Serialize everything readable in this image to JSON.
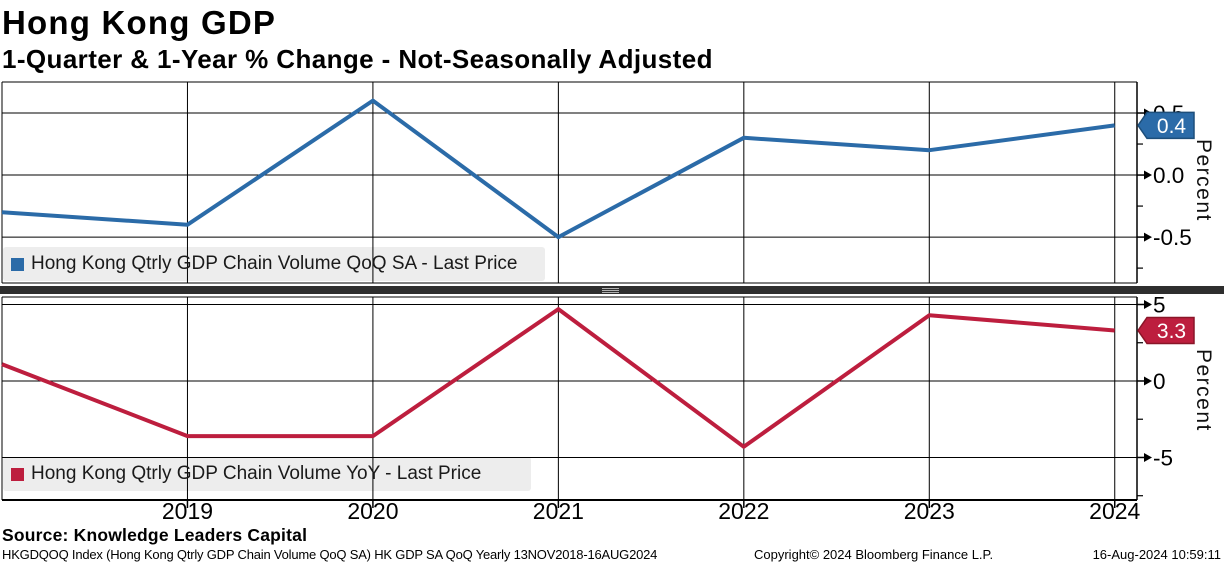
{
  "header": {
    "title": "Hong Kong GDP",
    "subtitle": "1-Quarter & 1-Year % Change - Not-Seasonally Adjusted"
  },
  "footer": {
    "source": "Source: Knowledge Leaders Capital",
    "tracker": "HKGDQOQ Index (Hong Kong Qtrly GDP Chain Volume QoQ SA) HK GDP SA QoQ  Yearly 13NOV2018-16AUG2024",
    "copyright": "Copyright© 2024 Bloomberg Finance L.P.",
    "timestamp": "16-Aug-2024 10:59:11"
  },
  "colors": {
    "qoq_blue": "#2b6ba8",
    "yoy_red": "#bd1e3e",
    "grid": "#000000",
    "legend_bg": "#ededed",
    "divider": "#2e2e2e"
  },
  "x_axis": {
    "xlim": [
      2018.0,
      2024.12
    ],
    "ticks": [
      {
        "v": 2019,
        "label": "2019"
      },
      {
        "v": 2020,
        "label": "2020"
      },
      {
        "v": 2021,
        "label": "2021"
      },
      {
        "v": 2022,
        "label": "2022"
      },
      {
        "v": 2023,
        "label": "2023"
      },
      {
        "v": 2024,
        "label": "2024"
      }
    ]
  },
  "chart_data": [
    {
      "type": "line",
      "panel": "top",
      "name": "Hong Kong Qtrly GDP Chain Volume QoQ SA - Last Price",
      "color": "#2b6ba8",
      "badge_border": "#1d4e7a",
      "ylabel": "Percent",
      "x": [
        2018,
        2019,
        2020,
        2021,
        2022,
        2023,
        2024
      ],
      "values": [
        -0.3,
        -0.4,
        0.6,
        -0.5,
        0.3,
        0.2,
        0.4
      ],
      "last_label": "0.4",
      "ylim": [
        -0.87,
        0.75
      ],
      "y_ticks": [
        {
          "v": 0.5,
          "label": "0.5"
        },
        {
          "v": 0.0,
          "label": "0.0"
        },
        {
          "v": -0.5,
          "label": "-0.5"
        }
      ],
      "y_minor": [
        0.75,
        0.25,
        -0.25,
        -0.75
      ],
      "grid": true,
      "legend_position": "bottom-left"
    },
    {
      "type": "line",
      "panel": "bottom",
      "name": "Hong Kong Qtrly GDP Chain Volume YoY - Last Price",
      "color": "#bd1e3e",
      "badge_border": "#8a1528",
      "ylabel": "Percent",
      "x": [
        2018,
        2019,
        2020,
        2021,
        2022,
        2023,
        2024
      ],
      "values": [
        1.1,
        -3.6,
        -3.6,
        4.7,
        -4.3,
        4.3,
        3.3
      ],
      "last_label": "3.3",
      "ylim": [
        -7.78,
        5.49
      ],
      "y_ticks": [
        {
          "v": 5,
          "label": "5"
        },
        {
          "v": 0,
          "label": "0"
        },
        {
          "v": -5,
          "label": "-5"
        }
      ],
      "y_minor": [
        2.5,
        -2.5,
        -7.5
      ],
      "grid": true,
      "legend_position": "bottom-left"
    }
  ]
}
